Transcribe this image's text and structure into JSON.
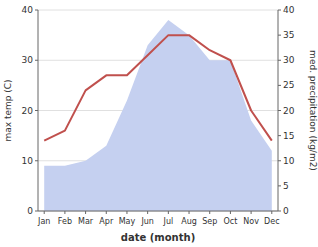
{
  "chart_data": {
    "type": "line",
    "categories": [
      "Jan",
      "Feb",
      "Mar",
      "Apr",
      "May",
      "Jun",
      "Jul",
      "Aug",
      "Sep",
      "Oct",
      "Nov",
      "Dec"
    ],
    "series": [
      {
        "type": "area",
        "color": "#c5d0f0",
        "axis": "y2",
        "values": [
          9,
          9,
          10,
          13,
          22,
          33,
          38,
          35,
          30,
          30,
          18,
          12
        ]
      },
      {
        "type": "line",
        "color": "#c0504d",
        "values": [
          14,
          16,
          24,
          27,
          27,
          31,
          35,
          35,
          32,
          30,
          20,
          14
        ]
      }
    ],
    "xlabel": "date (month)",
    "ylabel": "max temp (C)",
    "y2label": "med. precipitation (kg/m2)",
    "ylim": [
      0,
      40
    ],
    "yticks": [
      0,
      10,
      20,
      30,
      40
    ],
    "y2lim": [
      0,
      40
    ],
    "y2ticks": [
      0,
      5,
      10,
      15,
      20,
      25,
      30,
      35,
      40
    ],
    "grid": true
  }
}
